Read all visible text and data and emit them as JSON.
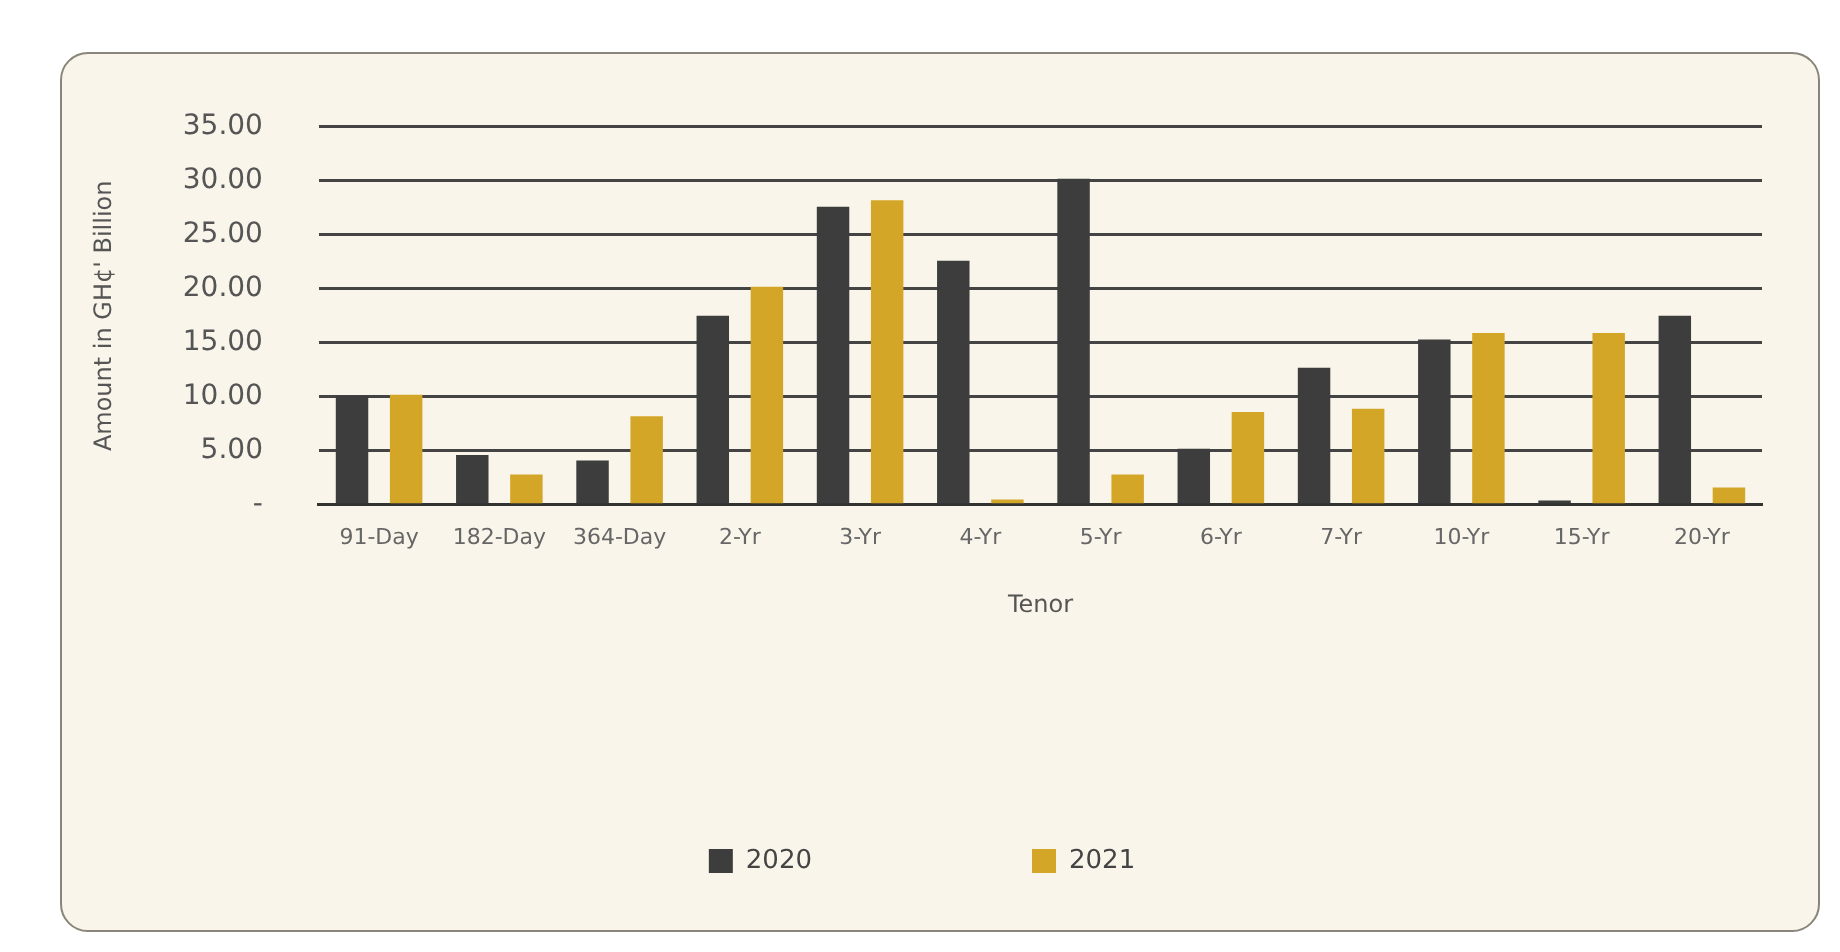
{
  "chart_data": {
    "type": "bar",
    "xlabel": "Tenor",
    "ylabel": "Amount in GH¢' Billion",
    "categories": [
      "91-Day",
      "182-Day",
      "364-Day",
      "2-Yr",
      "3-Yr",
      "4-Yr",
      "5-Yr",
      "6-Yr",
      "7-Yr",
      "10-Yr",
      "15-Yr",
      "20-Yr"
    ],
    "series": [
      {
        "name": "2020",
        "color": "#3d3d3d",
        "values": [
          10.1,
          4.6,
          4.1,
          17.5,
          27.6,
          22.6,
          30.2,
          5.2,
          12.7,
          15.3,
          0.4,
          17.5
        ]
      },
      {
        "name": "2021",
        "color": "#d4a628",
        "values": [
          10.2,
          2.8,
          8.2,
          20.2,
          28.2,
          0.5,
          2.8,
          8.6,
          8.9,
          15.9,
          15.9,
          1.6
        ]
      }
    ],
    "ylim": [
      0,
      35
    ],
    "yticks": [
      {
        "value": 0,
        "label": "-"
      },
      {
        "value": 5,
        "label": "5.00"
      },
      {
        "value": 10,
        "label": "10.00"
      },
      {
        "value": 15,
        "label": "15.00"
      },
      {
        "value": 20,
        "label": "20.00"
      },
      {
        "value": 25,
        "label": "25.00"
      },
      {
        "value": 30,
        "label": "30.00"
      },
      {
        "value": 35,
        "label": "35.00"
      }
    ],
    "grid": "y",
    "legend": "bottom"
  }
}
